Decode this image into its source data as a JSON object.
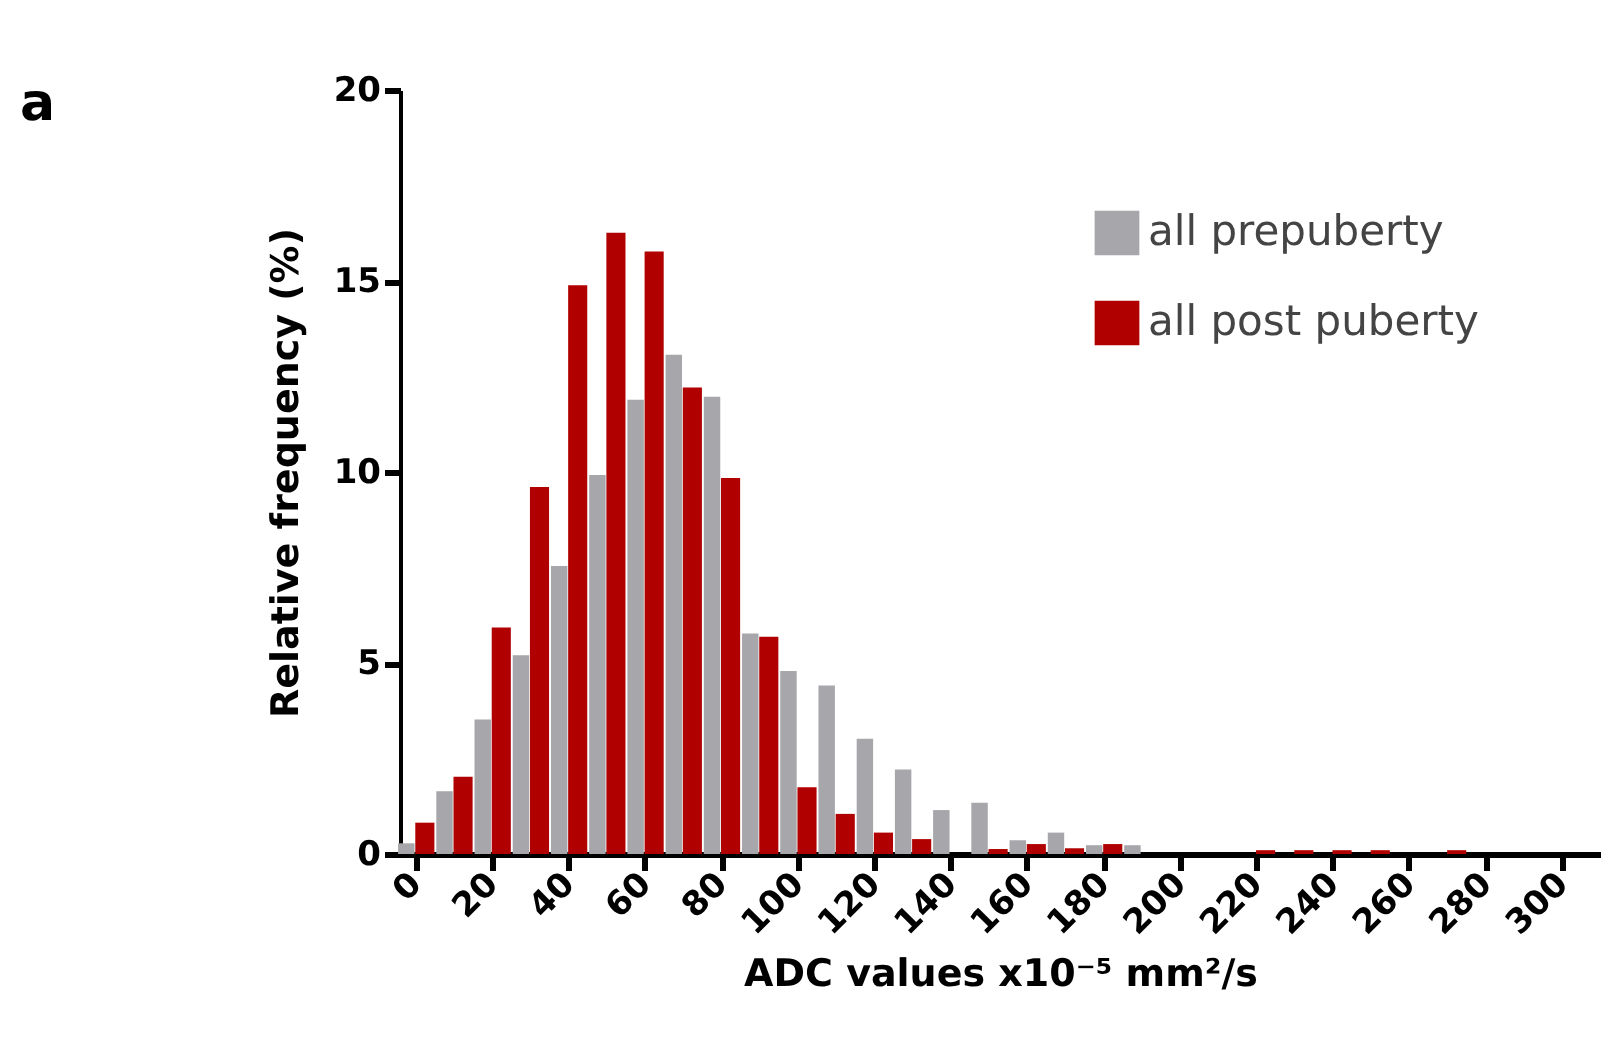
{
  "chart_data": {
    "type": "bar",
    "xlabel": "ADC values x10⁻⁵ mm²/s",
    "ylabel": "Relative frequency (%)",
    "annotations": [
      "a"
    ],
    "x": [
      0,
      10,
      20,
      30,
      40,
      50,
      60,
      70,
      80,
      90,
      100,
      110,
      120,
      130,
      140,
      150,
      160,
      170,
      180,
      190,
      200,
      210,
      220,
      230,
      240,
      250,
      260,
      270
    ],
    "series": [
      {
        "name": "all prepuberty",
        "color": "#a6a6ab",
        "values": [
          0.28,
          1.64,
          3.52,
          5.2,
          7.54,
          9.92,
          11.89,
          13.07,
          11.97,
          5.77,
          4.79,
          4.41,
          3.02,
          2.21,
          1.15,
          1.34,
          0.36,
          0.56,
          0.23,
          0.23,
          null,
          null,
          null,
          null,
          null,
          null,
          null,
          null
        ]
      },
      {
        "name": "all post puberty",
        "color": "#b00000",
        "values": [
          0.82,
          2.02,
          5.93,
          9.61,
          14.89,
          16.26,
          15.77,
          12.21,
          9.84,
          5.69,
          1.75,
          1.05,
          0.56,
          0.39,
          null,
          0.13,
          0.26,
          0.15,
          0.26,
          null,
          null,
          null,
          0.1,
          0.1,
          0.1,
          0.1,
          null,
          0.1
        ]
      }
    ],
    "xlim": [
      -4,
      310
    ],
    "xticks": [
      0,
      20,
      40,
      60,
      80,
      100,
      120,
      140,
      160,
      180,
      200,
      220,
      240,
      260,
      280,
      300
    ],
    "ylim": [
      0,
      20
    ],
    "yticks": [
      0,
      5,
      10,
      15,
      20
    ],
    "grid": false,
    "legend": "top right"
  }
}
